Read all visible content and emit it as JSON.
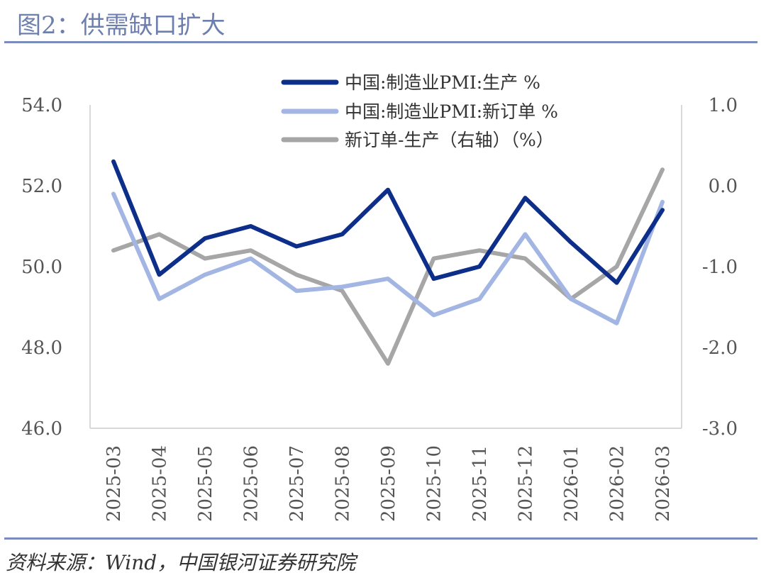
{
  "figure": {
    "title": "图2：供需缺口扩大",
    "source": "资料来源：Wind，中国银河证券研究院"
  },
  "chart_data": {
    "type": "line",
    "categories": [
      "2025-03",
      "2025-04",
      "2025-05",
      "2025-06",
      "2025-07",
      "2025-08",
      "2025-09",
      "2025-10",
      "2025-11",
      "2025-12",
      "2026-01",
      "2026-02",
      "2026-03"
    ],
    "left_axis": {
      "range": [
        46.0,
        54.0
      ],
      "ticks": [
        "54.0",
        "52.0",
        "50.0",
        "48.0",
        "46.0"
      ],
      "tick_values": [
        54,
        52,
        50,
        48,
        46
      ]
    },
    "right_axis": {
      "range": [
        -3.0,
        1.0
      ],
      "ticks": [
        "1.0",
        "0.0",
        "-1.0",
        "-2.0",
        "-3.0"
      ],
      "tick_values": [
        1,
        0,
        -1,
        -2,
        -3
      ]
    },
    "series": [
      {
        "name": "中国:制造业PMI:生产 %",
        "axis": "left",
        "color": "#0d2f8a",
        "values": [
          52.6,
          49.8,
          50.7,
          51.0,
          50.5,
          50.8,
          51.9,
          49.7,
          50.0,
          51.7,
          50.6,
          49.6,
          51.4
        ]
      },
      {
        "name": "中国:制造业PMI:新订单 %",
        "axis": "left",
        "color": "#a3b6e3",
        "values": [
          51.8,
          49.2,
          49.8,
          50.2,
          49.4,
          49.5,
          49.7,
          48.8,
          49.2,
          50.8,
          49.2,
          48.6,
          51.6
        ]
      },
      {
        "name": "新订单-生产（右轴）（%）",
        "axis": "right",
        "color": "#a6a6a6",
        "values": [
          -0.8,
          -0.6,
          -0.9,
          -0.8,
          -1.1,
          -1.3,
          -2.2,
          -0.9,
          -0.8,
          -0.9,
          -1.4,
          -1.0,
          0.2
        ]
      }
    ],
    "legend_position": "top-center",
    "grid": false
  }
}
